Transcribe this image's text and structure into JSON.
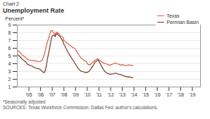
{
  "chart_data": {
    "type": "line",
    "subtitle": "Chart 2",
    "title": "Unemployment Rate",
    "ylabel": "Percent*",
    "annotations": [
      "*Seasonally adjusted",
      "SOURCES: Texas Workforce Commission; Dallas Fed; author's calculations."
    ],
    "x": [
      2004.0,
      2004.0833333333333,
      2004.1666666666667,
      2004.25,
      2004.3333333333333,
      2004.4166666666667,
      2004.5,
      2004.5833333333333,
      2004.6666666666667,
      2004.75,
      2004.8333333333333,
      2004.9166666666667,
      2005.0,
      2005.0833333333333,
      2005.1666666666667,
      2005.25,
      2005.3333333333333,
      2005.4166666666667,
      2005.5,
      2005.5833333333333,
      2005.6666666666667,
      2005.75,
      2005.8333333333333,
      2005.9166666666667,
      2006.0,
      2006.0833333333333,
      2006.1666666666667,
      2006.25,
      2006.3333333333333,
      2006.4166666666667,
      2006.5,
      2006.5833333333333,
      2006.6666666666667,
      2006.75,
      2006.8333333333333,
      2006.9166666666667,
      2007.0,
      2007.0833333333333,
      2007.1666666666667,
      2007.25,
      2007.3333333333333,
      2007.4166666666667,
      2007.5,
      2007.5833333333333,
      2007.6666666666667,
      2007.75,
      2007.8333333333333,
      2007.9166666666667,
      2008.0,
      2008.0833333333333,
      2008.1666666666667,
      2008.25,
      2008.3333333333333,
      2008.4166666666667,
      2008.5,
      2008.5833333333333,
      2008.6666666666667,
      2008.75,
      2008.8333333333333,
      2008.9166666666667,
      2009.0,
      2009.0833333333333,
      2009.1666666666667,
      2009.25,
      2009.3333333333333,
      2009.4166666666667,
      2009.5,
      2009.5833333333333,
      2009.6666666666667,
      2009.75,
      2009.8333333333333,
      2009.9166666666667,
      2010.0,
      2010.0833333333333,
      2010.1666666666667,
      2010.25,
      2010.3333333333333,
      2010.4166666666667,
      2010.5,
      2010.5833333333333,
      2010.6666666666667,
      2010.75,
      2010.8333333333333,
      2010.9166666666667,
      2011.0,
      2011.0833333333333,
      2011.1666666666667,
      2011.25,
      2011.3333333333333,
      2011.4166666666667,
      2011.5,
      2011.5833333333333,
      2011.6666666666667,
      2011.75,
      2011.8333333333333,
      2011.9166666666667,
      2012.0,
      2012.0833333333333,
      2012.1666666666667,
      2012.25,
      2012.3333333333333,
      2012.4166666666667,
      2012.5,
      2012.5833333333333,
      2012.6666666666667,
      2012.75,
      2012.8333333333333,
      2012.9166666666667,
      2013.0,
      2013.0833333333333,
      2013.1666666666667,
      2013.25,
      2013.3333333333333,
      2013.4166666666667,
      2013.5,
      2013.5833333333333,
      2013.6666666666667,
      2013.75,
      2013.8333333333333,
      2013.9166666666667
    ],
    "series": [
      {
        "name": "Texas",
        "color": "#e05a3a",
        "values": [
          5.75,
          5.65,
          5.55,
          5.45,
          5.3,
          5.15,
          5.05,
          4.95,
          4.85,
          4.75,
          4.65,
          4.55,
          4.5,
          4.45,
          4.45,
          4.45,
          4.42,
          4.4,
          4.38,
          4.35,
          4.32,
          4.3,
          4.28,
          4.25,
          4.3,
          4.4,
          4.6,
          4.9,
          5.3,
          5.8,
          6.3,
          6.8,
          7.2,
          7.6,
          8.1,
          8.3,
          8.25,
          8.1,
          7.9,
          7.7,
          8.05,
          8.05,
          7.95,
          7.85,
          7.7,
          7.55,
          7.5,
          7.4,
          7.0,
          6.9,
          6.8,
          6.7,
          6.55,
          6.5,
          6.4,
          6.3,
          6.2,
          6.1,
          6.05,
          6.0,
          5.8,
          5.6,
          5.4,
          5.2,
          5.0,
          4.85,
          4.7,
          4.6,
          4.5,
          4.4,
          4.35,
          4.3,
          4.0,
          3.9,
          3.85,
          3.9,
          4.0,
          4.1,
          4.2,
          4.3,
          4.5,
          4.55,
          4.6,
          4.65,
          4.5,
          4.4,
          4.3,
          4.2,
          4.15,
          4.1,
          4.05,
          4.0,
          3.95,
          3.9,
          3.85,
          3.8,
          3.85,
          3.9,
          3.95,
          4.0,
          4.05,
          4.1,
          4.05,
          4.0,
          3.95,
          3.9,
          3.85,
          3.8,
          3.9,
          3.85,
          3.8,
          3.75,
          3.75,
          3.8,
          3.82,
          3.85,
          3.82,
          3.8,
          3.78,
          3.75
        ]
      },
      {
        "name": "Permian Basin",
        "color": "#7a3520",
        "values": [
          5.2,
          5.1,
          5.0,
          4.9,
          4.75,
          4.6,
          4.5,
          4.4,
          4.3,
          4.2,
          4.0,
          3.9,
          3.85,
          3.8,
          3.75,
          3.7,
          3.65,
          3.55,
          3.5,
          3.45,
          3.4,
          3.38,
          3.35,
          3.3,
          3.2,
          3.1,
          3.0,
          2.85,
          2.9,
          3.2,
          3.8,
          4.6,
          5.2,
          5.8,
          6.5,
          7.2,
          7.6,
          7.7,
          7.65,
          7.5,
          7.8,
          7.9,
          7.7,
          7.6,
          7.5,
          7.3,
          7.1,
          6.9,
          6.5,
          6.3,
          6.0,
          5.8,
          5.5,
          5.3,
          5.1,
          4.9,
          4.7,
          4.5,
          4.3,
          4.1,
          3.9,
          3.7,
          3.5,
          3.35,
          3.2,
          3.1,
          3.0,
          3.0,
          2.95,
          2.9,
          2.88,
          2.85,
          2.9,
          2.95,
          3.05,
          3.2,
          3.4,
          3.6,
          3.8,
          4.0,
          4.2,
          4.3,
          4.4,
          4.5,
          4.3,
          4.1,
          3.85,
          3.6,
          3.4,
          3.2,
          3.0,
          2.9,
          2.8,
          2.75,
          2.7,
          2.65,
          2.65,
          2.68,
          2.7,
          2.72,
          2.75,
          2.8,
          2.75,
          2.7,
          2.65,
          2.62,
          2.6,
          2.58,
          2.5,
          2.45,
          2.4,
          2.38,
          2.35,
          2.3,
          2.28,
          2.3,
          2.28,
          2.25,
          2.22,
          2.2
        ]
      }
    ],
    "xlim": [
      2004.0,
      2019.7
    ],
    "xticks": [
      {
        "value": 2005,
        "label": "'05"
      },
      {
        "value": 2006,
        "label": "'06"
      },
      {
        "value": 2007,
        "label": "'07"
      },
      {
        "value": 2008,
        "label": "'08"
      },
      {
        "value": 2009,
        "label": "'09"
      },
      {
        "value": 2010,
        "label": "'10"
      },
      {
        "value": 2011,
        "label": "'11"
      },
      {
        "value": 2012,
        "label": "'12"
      },
      {
        "value": 2013,
        "label": "'13"
      },
      {
        "value": 2014,
        "label": "'14"
      },
      {
        "value": 2015,
        "label": "'15"
      },
      {
        "value": 2016,
        "label": "'16"
      },
      {
        "value": 2017,
        "label": "'17"
      },
      {
        "value": 2018,
        "label": "'18"
      },
      {
        "value": 2019,
        "label": "'19"
      }
    ],
    "ylim": [
      1,
      9
    ],
    "yticks": [
      1,
      2,
      3,
      4,
      5,
      6,
      7,
      8,
      9
    ],
    "grid": true,
    "legend": "upper right"
  }
}
